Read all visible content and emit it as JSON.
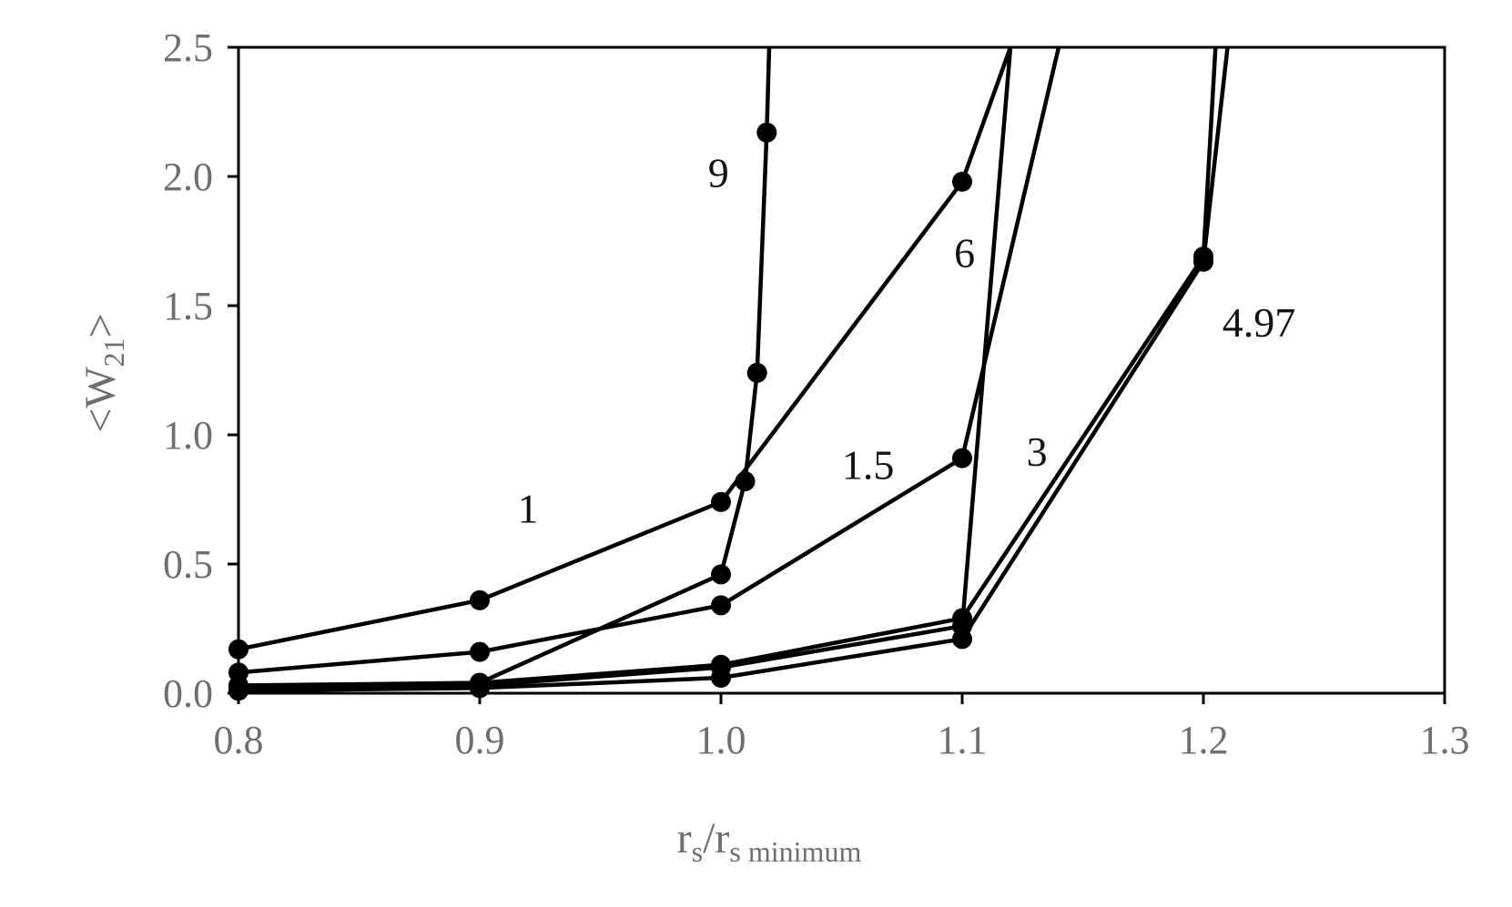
{
  "chart_data": {
    "type": "line",
    "xlabel": {
      "main": "r",
      "sub1": "s",
      "slash": "/r",
      "sub2": "s minimum"
    },
    "ylabel": {
      "open": "<W",
      "sub": "21",
      "close": ">"
    },
    "xlim": [
      0.8,
      1.3
    ],
    "ylim": [
      0,
      2.5
    ],
    "xticks": [
      "0.8",
      "0.9",
      "1.0",
      "1.1",
      "1.2",
      "1.3"
    ],
    "yticks": [
      "0.0",
      "0.5",
      "1.0",
      "1.5",
      "2.0",
      "2.5"
    ],
    "grid": false,
    "legend": "none",
    "colors": {
      "line": "#000000",
      "marker": "#000000",
      "axis": "#000000",
      "tick_text": "#6e6e6e"
    },
    "series": [
      {
        "label": "1",
        "label_pos": [
          0.92,
          0.66
        ],
        "x": [
          0.8,
          0.9,
          1.0,
          1.1,
          1.12
        ],
        "y": [
          0.17,
          0.36,
          0.74,
          1.98,
          2.5
        ],
        "markers": [
          true,
          true,
          true,
          true,
          false
        ]
      },
      {
        "label": "9",
        "label_pos": [
          0.999,
          1.96
        ],
        "x": [
          0.8,
          0.9,
          1.0,
          1.01,
          1.015,
          1.019,
          1.02
        ],
        "y": [
          0.02,
          0.04,
          0.46,
          0.82,
          1.24,
          2.17,
          2.5
        ],
        "markers": [
          true,
          true,
          true,
          true,
          true,
          true,
          false
        ]
      },
      {
        "label": "1.5",
        "label_pos": [
          1.061,
          0.83
        ],
        "x": [
          0.8,
          0.9,
          1.0,
          1.1,
          1.14
        ],
        "y": [
          0.08,
          0.16,
          0.34,
          0.91,
          2.5
        ],
        "markers": [
          true,
          true,
          true,
          true,
          false
        ]
      },
      {
        "label": "6",
        "label_pos": [
          1.101,
          1.65
        ],
        "x": [
          0.8,
          0.9,
          1.0,
          1.1,
          1.12
        ],
        "y": [
          0.01,
          0.03,
          0.1,
          0.26,
          2.5
        ],
        "markers": [
          true,
          true,
          true,
          true,
          false
        ]
      },
      {
        "label": "3",
        "label_pos": [
          1.131,
          0.88
        ],
        "x": [
          0.8,
          0.9,
          1.0,
          1.1,
          1.2,
          1.205
        ],
        "y": [
          0.03,
          0.04,
          0.11,
          0.29,
          1.69,
          2.5
        ],
        "markers": [
          true,
          true,
          true,
          true,
          true,
          false
        ]
      },
      {
        "label": "4.97",
        "label_pos": [
          1.223,
          1.38
        ],
        "x": [
          0.8,
          0.9,
          1.0,
          1.1,
          1.2,
          1.21
        ],
        "y": [
          0.01,
          0.02,
          0.06,
          0.21,
          1.67,
          2.5
        ],
        "markers": [
          true,
          true,
          true,
          true,
          true,
          false
        ]
      }
    ]
  }
}
